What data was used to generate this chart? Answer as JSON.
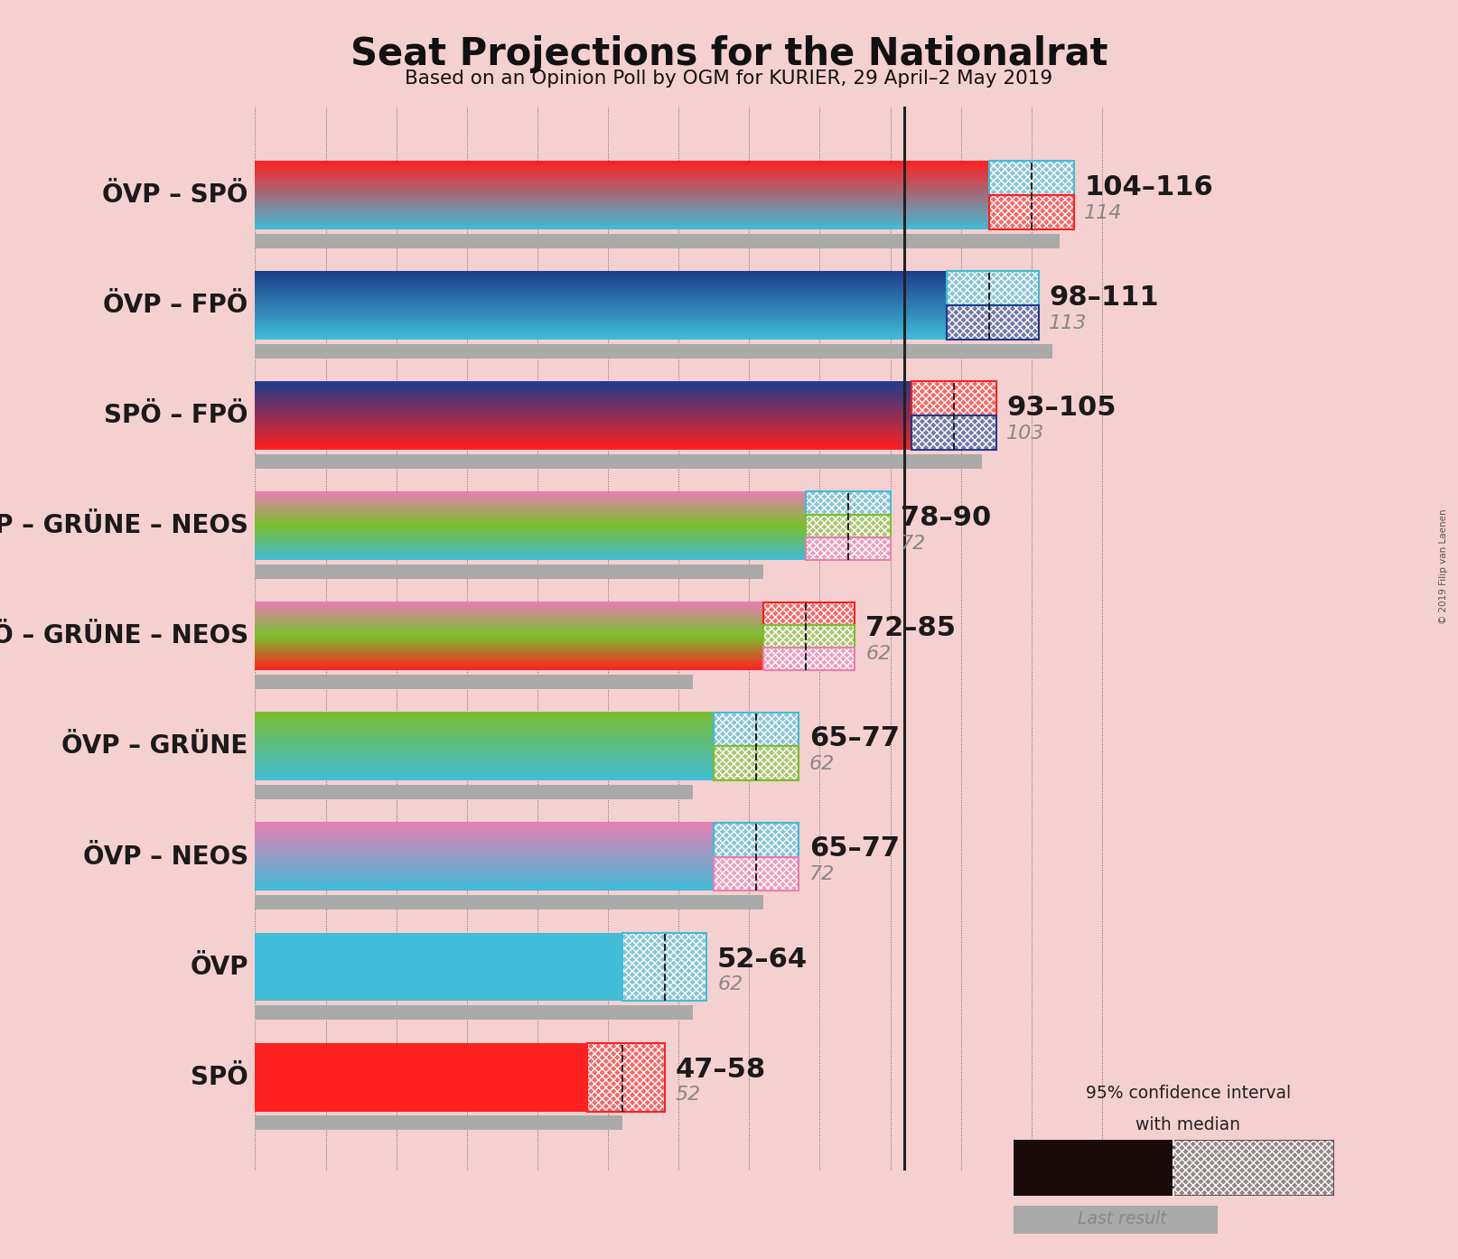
{
  "title": "Seat Projections for the Nationalrat",
  "subtitle": "Based on an Opinion Poll by OGM for KURIER, 29 April–2 May 2019",
  "background_color": "#f5d0d0",
  "coalitions": [
    {
      "label": "ÖVP – SPÖ",
      "colors": [
        "#40bcd8",
        "#ff2020"
      ],
      "ci_min": 104,
      "ci_max": 116,
      "median": 110,
      "last_result": 114
    },
    {
      "label": "ÖVP – FPÖ",
      "colors": [
        "#40bcd8",
        "#1e3d8c"
      ],
      "ci_min": 98,
      "ci_max": 111,
      "median": 104,
      "last_result": 113
    },
    {
      "label": "SPÖ – FPÖ",
      "colors": [
        "#ff2020",
        "#1e3d8c"
      ],
      "ci_min": 93,
      "ci_max": 105,
      "median": 99,
      "last_result": 103
    },
    {
      "label": "ÖVP – GRÜNE – NEOS",
      "colors": [
        "#40bcd8",
        "#7abf2e",
        "#e87eb4"
      ],
      "ci_min": 78,
      "ci_max": 90,
      "median": 84,
      "last_result": 72
    },
    {
      "label": "SPÖ – GRÜNE – NEOS",
      "colors": [
        "#ff2020",
        "#7abf2e",
        "#e87eb4"
      ],
      "ci_min": 72,
      "ci_max": 85,
      "median": 78,
      "last_result": 62
    },
    {
      "label": "ÖVP – GRÜNE",
      "colors": [
        "#40bcd8",
        "#7abf2e"
      ],
      "ci_min": 65,
      "ci_max": 77,
      "median": 71,
      "last_result": 62
    },
    {
      "label": "ÖVP – NEOS",
      "colors": [
        "#40bcd8",
        "#e87eb4"
      ],
      "ci_min": 65,
      "ci_max": 77,
      "median": 71,
      "last_result": 72
    },
    {
      "label": "ÖVP",
      "colors": [
        "#40bcd8"
      ],
      "ci_min": 52,
      "ci_max": 64,
      "median": 58,
      "last_result": 62
    },
    {
      "label": "SPÖ",
      "colors": [
        "#ff2020"
      ],
      "ci_min": 47,
      "ci_max": 58,
      "median": 52,
      "last_result": 52
    }
  ],
  "xlim": [
    0,
    125
  ],
  "majority_line": 92,
  "watermark": "© 2019 Filip van Laenen",
  "range_label_fontsize": 22,
  "median_label_fontsize": 16
}
